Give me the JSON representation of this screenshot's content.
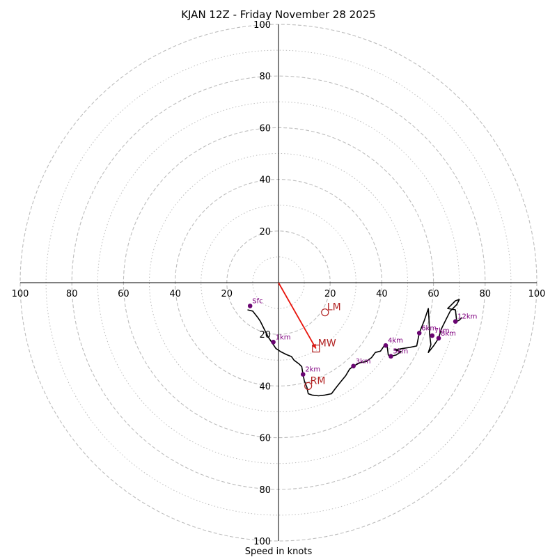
{
  "chart_data": {
    "type": "hodograph",
    "title": "KJAN 12Z - Friday November 28 2025",
    "xlabel": "Speed in knots",
    "unit": "knots",
    "max_speed": 100,
    "ring_major": [
      20,
      40,
      60,
      80,
      100
    ],
    "ring_minor": [
      10,
      30,
      50,
      70,
      90
    ],
    "tick_values": [
      20,
      40,
      60,
      80,
      100
    ],
    "colors": {
      "ring": "#bdbdbd",
      "trace": "#000000",
      "height_marker": "#6a0572",
      "storm": "#b22222",
      "mean_wind_vector": "#e8140c"
    },
    "hodograph_trace": [
      [
        -12,
        -10.5
      ],
      [
        -10,
        -11
      ],
      [
        -8,
        -13.5
      ],
      [
        -7,
        -15
      ],
      [
        -6,
        -17
      ],
      [
        -5,
        -19
      ],
      [
        -4,
        -21
      ],
      [
        -3,
        -22.5
      ],
      [
        -2,
        -24
      ],
      [
        -1,
        -25.5
      ],
      [
        1,
        -26.8
      ],
      [
        3,
        -27.8
      ],
      [
        5,
        -28.6
      ],
      [
        6,
        -30
      ],
      [
        8,
        -31.5
      ],
      [
        9,
        -32.5
      ],
      [
        9.5,
        -35.5
      ],
      [
        10,
        -38
      ],
      [
        11,
        -40.5
      ],
      [
        11.5,
        -43
      ],
      [
        13,
        -43.5
      ],
      [
        15.5,
        -43.8
      ],
      [
        18,
        -43.5
      ],
      [
        20.5,
        -43
      ],
      [
        22,
        -41
      ],
      [
        24,
        -38.5
      ],
      [
        26,
        -36
      ],
      [
        27.5,
        -33.5
      ],
      [
        29,
        -32.3
      ],
      [
        31.5,
        -31
      ],
      [
        34,
        -30.5
      ],
      [
        36,
        -29
      ],
      [
        37.5,
        -27
      ],
      [
        39.5,
        -26.5
      ],
      [
        41,
        -24.3
      ],
      [
        42,
        -24
      ],
      [
        42.5,
        -28
      ],
      [
        43.5,
        -28.5
      ],
      [
        45.5,
        -28
      ],
      [
        47.5,
        -26.7
      ],
      [
        45,
        -26
      ],
      [
        48,
        -25.5
      ],
      [
        51,
        -25
      ],
      [
        53.5,
        -24.5
      ],
      [
        54.5,
        -19.5
      ],
      [
        56.5,
        -14.5
      ],
      [
        58,
        -10
      ],
      [
        58.3,
        -15
      ],
      [
        58.5,
        -20
      ],
      [
        59,
        -24
      ],
      [
        58,
        -27
      ],
      [
        60,
        -24.5
      ],
      [
        62,
        -21.5
      ],
      [
        63,
        -18
      ],
      [
        65,
        -14
      ],
      [
        66.5,
        -11
      ],
      [
        69,
        -8.5
      ],
      [
        70,
        -6.5
      ],
      [
        68.5,
        -7
      ],
      [
        66.5,
        -9
      ],
      [
        65.5,
        -10
      ],
      [
        68.5,
        -10.5
      ],
      [
        69,
        -15
      ],
      [
        70,
        -14.5
      ],
      [
        71,
        -13.5
      ]
    ],
    "height_markers": [
      {
        "label": "Sfc",
        "u": -11,
        "v": -9
      },
      {
        "label": "1km",
        "u": -2,
        "v": -23
      },
      {
        "label": "2km",
        "u": 9.5,
        "v": -35.5
      },
      {
        "label": "3km",
        "u": 29,
        "v": -32.3
      },
      {
        "label": "4km",
        "u": 41.5,
        "v": -24.3
      },
      {
        "label": "5km",
        "u": 43.5,
        "v": -28.5
      },
      {
        "label": "6km",
        "u": 54.5,
        "v": -19.5
      },
      {
        "label": "7km",
        "u": 59.5,
        "v": -20.5
      },
      {
        "label": "8km",
        "u": 62,
        "v": -21.5
      },
      {
        "label": "12km",
        "u": 68.5,
        "v": -15
      }
    ],
    "storm_motions": [
      {
        "label": "LM",
        "u": 18,
        "v": -11.5,
        "marker": "circle"
      },
      {
        "label": "MW",
        "u": 14.5,
        "v": -25.5,
        "marker": "square"
      },
      {
        "label": "RM",
        "u": 11.5,
        "v": -40,
        "marker": "circle"
      }
    ],
    "mean_wind_vector": {
      "from": [
        0,
        0
      ],
      "to": [
        14.5,
        -25.5
      ]
    }
  }
}
